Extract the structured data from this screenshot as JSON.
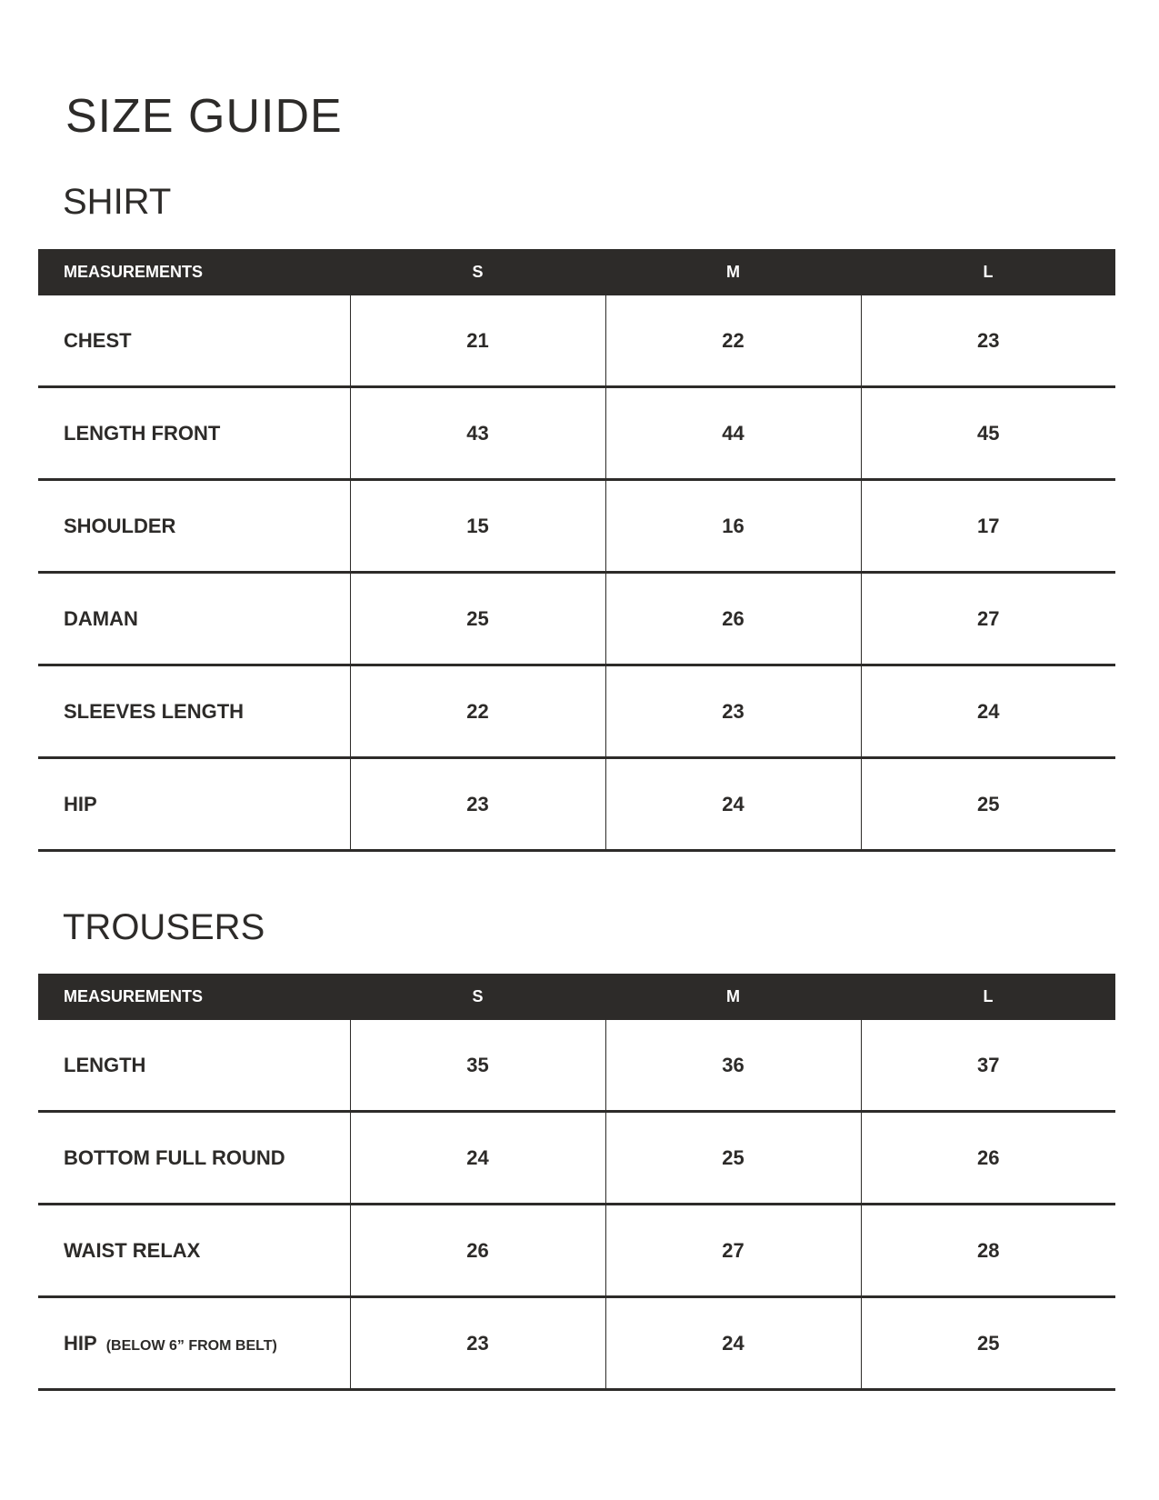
{
  "title": "SIZE GUIDE",
  "colors": {
    "text": "#2d2b29",
    "header_bg": "#2d2b29",
    "header_text": "#ffffff"
  },
  "shirt": {
    "title": "SHIRT",
    "headers": [
      "MEASUREMENTS",
      "S",
      "M",
      "L"
    ],
    "rows": [
      {
        "label": "CHEST",
        "values": [
          "21",
          "22",
          "23"
        ]
      },
      {
        "label": "LENGTH FRONT",
        "values": [
          "43",
          "44",
          "45"
        ]
      },
      {
        "label": "SHOULDER",
        "values": [
          "15",
          "16",
          "17"
        ]
      },
      {
        "label": "DAMAN",
        "values": [
          "25",
          "26",
          "27"
        ]
      },
      {
        "label": "SLEEVES LENGTH",
        "values": [
          "22",
          "23",
          "24"
        ]
      },
      {
        "label": "HIP",
        "values": [
          "23",
          "24",
          "25"
        ]
      }
    ]
  },
  "trousers": {
    "title": "TROUSERS",
    "headers": [
      "MEASUREMENTS",
      "S",
      "M",
      "L"
    ],
    "rows": [
      {
        "label": "LENGTH",
        "values": [
          "35",
          "36",
          "37"
        ]
      },
      {
        "label": "BOTTOM FULL ROUND",
        "values": [
          "24",
          "25",
          "26"
        ]
      },
      {
        "label": "WAIST RELAX",
        "values": [
          "26",
          "27",
          "28"
        ]
      },
      {
        "label": "HIP",
        "note": "(BELOW 6” FROM BELT)",
        "values": [
          "23",
          "24",
          "25"
        ]
      }
    ]
  }
}
